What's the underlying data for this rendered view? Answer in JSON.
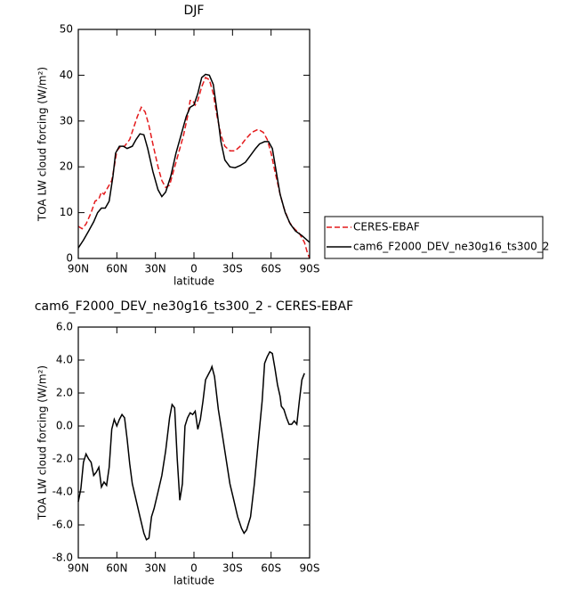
{
  "chart_data": [
    {
      "type": "line",
      "title": "DJF",
      "xlabel": "latitude",
      "ylabel": "TOA LW cloud forcing (W/m²)",
      "xlim": [
        90,
        -90
      ],
      "xticks": [
        {
          "value": 90,
          "label": "90N"
        },
        {
          "value": 60,
          "label": "60N"
        },
        {
          "value": 30,
          "label": "30N"
        },
        {
          "value": 0,
          "label": "0"
        },
        {
          "value": -30,
          "label": "30S"
        },
        {
          "value": -60,
          "label": "60S"
        },
        {
          "value": -90,
          "label": "90S"
        }
      ],
      "ylim": [
        0,
        50
      ],
      "yticks": [
        0,
        10,
        20,
        30,
        40,
        50
      ],
      "legend": "right",
      "series": [
        {
          "name": "CERES-EBAF",
          "color": "#e41a1c",
          "dash": true,
          "x": [
            90,
            87,
            84,
            80,
            77,
            74,
            72,
            70,
            67,
            64,
            62,
            60,
            57,
            54,
            50,
            47,
            44,
            41,
            38,
            35,
            32,
            28,
            25,
            22,
            19,
            16,
            12,
            8,
            5,
            3,
            1,
            -1,
            -3,
            -6,
            -9,
            -12,
            -15,
            -18,
            -21,
            -24,
            -28,
            -32,
            -36,
            -40,
            -45,
            -50,
            -54,
            -57,
            -60,
            -63,
            -67,
            -70,
            -74,
            -78,
            -82,
            -86,
            -88,
            -90
          ],
          "values": [
            7,
            6.5,
            7.5,
            10,
            12.5,
            13,
            14.5,
            14,
            15.5,
            17,
            20,
            23.5,
            24.5,
            24.5,
            26,
            28.5,
            31,
            33,
            32,
            29,
            25,
            20,
            17,
            15.5,
            16,
            19,
            23,
            27,
            31,
            34.5,
            34.5,
            33.5,
            34.5,
            37.5,
            39.5,
            39,
            36,
            31,
            27,
            24.5,
            23.5,
            23.5,
            24.5,
            26,
            27.5,
            28.2,
            27.5,
            26,
            23,
            19,
            14,
            11,
            8,
            6.5,
            5.5,
            3.5,
            1.5,
            0
          ]
        },
        {
          "name": "cam6_F2000_DEV_ne30g16_ts300_2",
          "color": "#000000",
          "dash": false,
          "x": [
            90,
            86,
            82,
            78,
            75,
            72,
            69,
            66,
            63,
            61,
            58,
            55,
            52,
            48,
            45,
            42,
            39,
            36,
            32,
            28,
            25,
            22,
            18,
            14,
            10,
            6,
            3,
            0,
            -3,
            -6,
            -9,
            -12,
            -15,
            -18,
            -21,
            -24,
            -28,
            -32,
            -36,
            -40,
            -44,
            -48,
            -51,
            -55,
            -58,
            -61,
            -64,
            -67,
            -71,
            -75,
            -79,
            -84,
            -88,
            -90
          ],
          "values": [
            2.3,
            4,
            6,
            8,
            10,
            11,
            11,
            12.5,
            18,
            23,
            24.5,
            24.5,
            24,
            24.5,
            26,
            27.2,
            27,
            24,
            19,
            15,
            13.5,
            14.5,
            18,
            23,
            27,
            31,
            33,
            33.5,
            36,
            39.5,
            40.2,
            40,
            38,
            32,
            25.5,
            21.5,
            20,
            19.8,
            20.3,
            21,
            22.5,
            24,
            25,
            25.5,
            25.5,
            24,
            19,
            14,
            10,
            7.5,
            6,
            5,
            4,
            3.5
          ]
        }
      ]
    },
    {
      "type": "line",
      "title": "cam6_F2000_DEV_ne30g16_ts300_2 - CERES-EBAF",
      "xlabel": "latitude",
      "ylabel": "TOA LW cloud forcing (W/m²)",
      "xlim": [
        90,
        -90
      ],
      "xticks": [
        {
          "value": 90,
          "label": "90N"
        },
        {
          "value": 60,
          "label": "60N"
        },
        {
          "value": 30,
          "label": "30N"
        },
        {
          "value": 0,
          "label": "0"
        },
        {
          "value": -30,
          "label": "30S"
        },
        {
          "value": -60,
          "label": "60S"
        },
        {
          "value": -90,
          "label": "90S"
        }
      ],
      "ylim": [
        -8,
        6
      ],
      "yticks": [
        {
          "value": -8,
          "label": "-8.0"
        },
        {
          "value": -6,
          "label": "-6.0"
        },
        {
          "value": -4,
          "label": "-4.0"
        },
        {
          "value": -2,
          "label": "-2.0"
        },
        {
          "value": 0,
          "label": "0.0"
        },
        {
          "value": 2,
          "label": "2.0"
        },
        {
          "value": 4,
          "label": "4.0"
        },
        {
          "value": 6,
          "label": "6.0"
        }
      ],
      "series": [
        {
          "color": "#000000",
          "dash": false,
          "x": [
            90,
            88,
            86,
            84,
            82,
            80,
            78,
            76,
            74,
            72,
            70,
            68,
            66,
            64,
            62,
            60,
            58,
            56,
            54,
            52,
            50,
            48,
            45,
            42,
            39,
            37,
            35,
            33,
            31,
            28,
            25,
            22,
            19,
            17,
            15,
            13,
            11,
            9,
            7,
            5,
            3,
            1,
            -1,
            -3,
            -5,
            -7,
            -9,
            -11,
            -13,
            -14,
            -16,
            -19,
            -22,
            -25,
            -28,
            -31,
            -34,
            -37,
            -39,
            -41,
            -44,
            -47,
            -50,
            -53,
            -55,
            -57,
            -59,
            -61,
            -63,
            -65,
            -67,
            -68,
            -70,
            -72,
            -74,
            -76,
            -78,
            -80,
            -82,
            -84,
            -86
          ],
          "values": [
            -4.6,
            -3.8,
            -2.2,
            -1.7,
            -2.0,
            -2.2,
            -3.0,
            -2.8,
            -2.5,
            -3.7,
            -3.4,
            -3.6,
            -2.5,
            -0.2,
            0.4,
            0.0,
            0.4,
            0.7,
            0.5,
            -0.8,
            -2.3,
            -3.5,
            -4.5,
            -5.5,
            -6.5,
            -6.9,
            -6.8,
            -5.5,
            -5.0,
            -4.0,
            -3.0,
            -1.5,
            0.5,
            1.3,
            1.1,
            -2.0,
            -4.5,
            -3.5,
            0.0,
            0.5,
            0.8,
            0.7,
            0.9,
            -0.2,
            0.4,
            1.5,
            2.8,
            3.1,
            3.4,
            3.6,
            3.0,
            1.0,
            -0.5,
            -2.0,
            -3.5,
            -4.5,
            -5.5,
            -6.2,
            -6.5,
            -6.3,
            -5.5,
            -3.5,
            -1.0,
            1.5,
            3.8,
            4.2,
            4.5,
            4.4,
            3.5,
            2.5,
            1.8,
            1.2,
            1.0,
            0.5,
            0.1,
            0.1,
            0.3,
            0.1,
            1.5,
            2.8,
            3.2
          ]
        }
      ]
    }
  ]
}
